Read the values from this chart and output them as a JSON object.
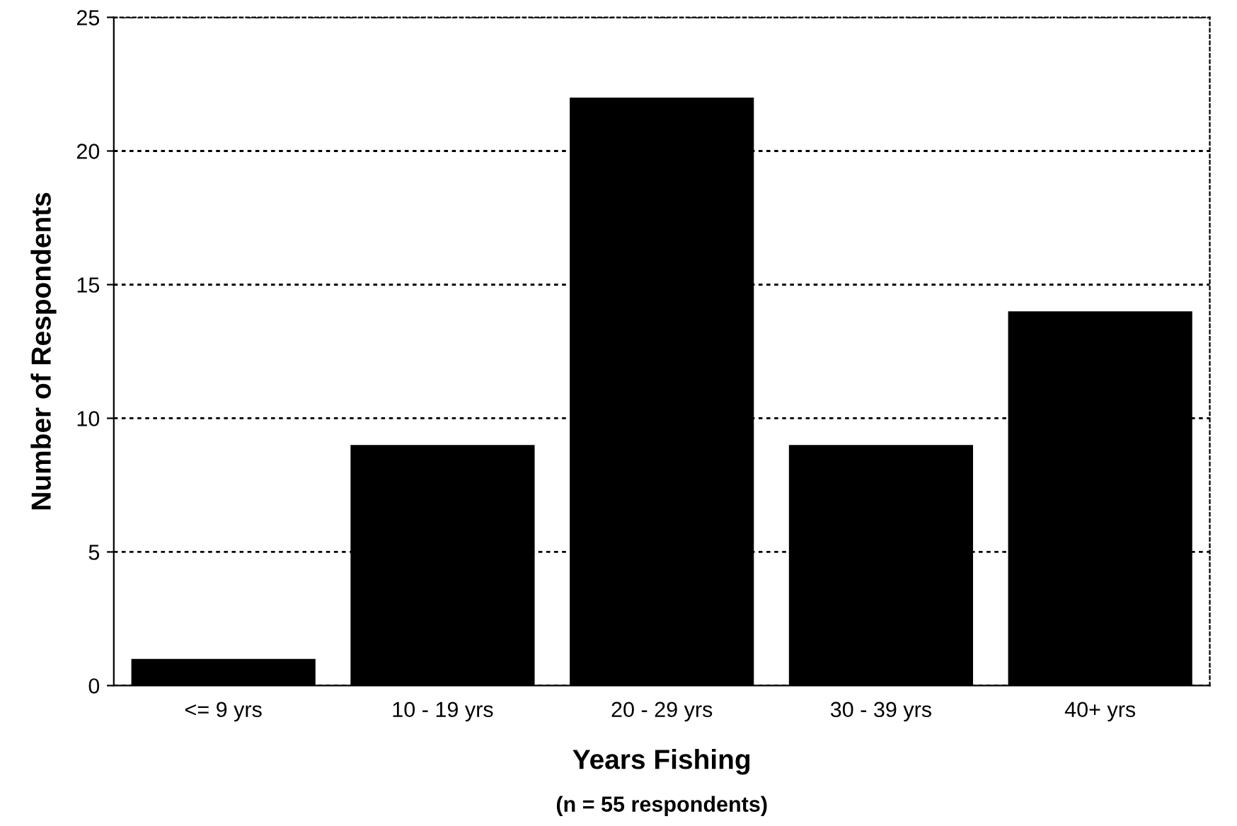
{
  "chart_data": {
    "type": "bar",
    "categories": [
      "<= 9 yrs",
      "10 - 19 yrs",
      "20 - 29 yrs",
      "30 - 39 yrs",
      "40+ yrs"
    ],
    "values": [
      1,
      9,
      22,
      9,
      14
    ],
    "color": "#000000",
    "xlabel": "Years Fishing",
    "ylabel": "Number of Respondents",
    "annotations": [
      "(n = 55 respondents)"
    ],
    "ylim": [
      0,
      25
    ],
    "yticks": [
      0,
      5,
      10,
      15,
      20,
      25
    ],
    "grid": "y",
    "legend": false
  }
}
